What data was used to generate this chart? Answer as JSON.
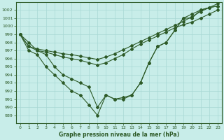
{
  "title": "Graphe pression niveau de la mer (hPa)",
  "background_color": "#c8ede9",
  "grid_color": "#a8d8d4",
  "line_color": "#2d5a27",
  "xlim": [
    -0.5,
    23.5
  ],
  "ylim": [
    988,
    1003
  ],
  "yticks": [
    989,
    990,
    991,
    992,
    993,
    994,
    995,
    996,
    997,
    998,
    999,
    1000,
    1001,
    1002
  ],
  "xticks": [
    0,
    1,
    2,
    3,
    4,
    5,
    6,
    7,
    8,
    9,
    10,
    11,
    12,
    13,
    14,
    15,
    16,
    17,
    18,
    19,
    20,
    21,
    22,
    23
  ],
  "series": [
    [
      999,
      998,
      997,
      996.5,
      995,
      994,
      993.5,
      993,
      992.5,
      990,
      991.5,
      991,
      991.2,
      991.5,
      993,
      995.5,
      997.5,
      998,
      999.5,
      1001,
      1001,
      1002,
      1002.3,
      1002.5
    ],
    [
      999,
      997,
      996.5,
      995,
      994,
      993,
      992,
      991.5,
      990.3,
      989,
      991.5,
      991,
      991,
      991.5,
      993,
      995.5,
      997.5,
      998,
      999.5,
      1001,
      1001.5,
      1002,
      1002.3,
      1002.5
    ],
    [
      999,
      997.5,
      997,
      996.8,
      996.5,
      996.2,
      996,
      995.8,
      995.5,
      995.2,
      995.5,
      996,
      996.5,
      997.2,
      997.8,
      998.3,
      998.8,
      999.3,
      999.8,
      1000.2,
      1000.5,
      1001,
      1001.5,
      1002
    ],
    [
      999,
      997.5,
      997.2,
      997.0,
      996.8,
      996.6,
      996.5,
      996.3,
      996.1,
      995.9,
      996.2,
      996.6,
      997.1,
      997.6,
      998.1,
      998.6,
      999.1,
      999.6,
      1000.1,
      1000.6,
      1001.2,
      1001.8,
      1002.3,
      1002.8
    ]
  ]
}
